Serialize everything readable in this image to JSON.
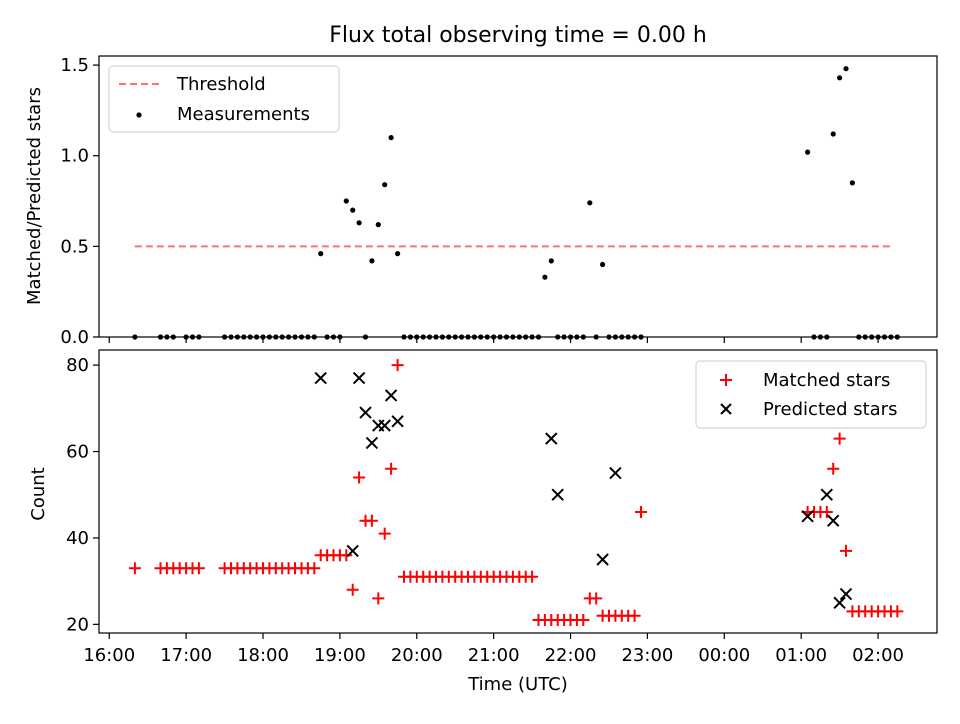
{
  "figure": {
    "title": "Flux total observing time = 0.00 h"
  },
  "chart_data": [
    {
      "type": "scatter",
      "title": "Flux total observing time = 0.00 h",
      "xlabel": "",
      "ylabel": "Matched/Predicted stars",
      "xlim": [
        "15:52",
        "02:46"
      ],
      "ylim": [
        0,
        1.55
      ],
      "yticks": [
        0.0,
        0.5,
        1.0,
        1.5
      ],
      "ytick_labels": [
        "0.0",
        "0.5",
        "1.0",
        "1.5"
      ],
      "grid": false,
      "legend": "top-left",
      "threshold": {
        "name": "Threshold",
        "value": 0.5,
        "x_start": "16:20",
        "x_end": "02:10",
        "color": "#ff7070"
      },
      "series": [
        {
          "name": "Measurements",
          "marker": "dot",
          "color": "#000000",
          "x": [
            "16:20",
            "16:40",
            "16:45",
            "16:50",
            "17:00",
            "17:05",
            "17:10",
            "17:30",
            "17:35",
            "17:40",
            "17:45",
            "17:50",
            "17:55",
            "18:00",
            "18:05",
            "18:10",
            "18:15",
            "18:20",
            "18:25",
            "18:30",
            "18:35",
            "18:40",
            "18:45",
            "18:50",
            "18:55",
            "19:00",
            "19:05",
            "19:10",
            "19:15",
            "19:20",
            "19:25",
            "19:30",
            "19:35",
            "19:40",
            "19:45",
            "19:50",
            "19:55",
            "20:00",
            "20:05",
            "20:10",
            "20:15",
            "20:20",
            "20:25",
            "20:30",
            "20:35",
            "20:40",
            "20:45",
            "20:50",
            "20:55",
            "21:00",
            "21:05",
            "21:10",
            "21:15",
            "21:20",
            "21:25",
            "21:30",
            "21:35",
            "21:40",
            "21:45",
            "21:50",
            "21:55",
            "22:00",
            "22:05",
            "22:10",
            "22:15",
            "22:20",
            "22:25",
            "22:30",
            "22:35",
            "22:40",
            "22:45",
            "22:50",
            "22:55",
            "01:05",
            "01:10",
            "01:15",
            "01:20",
            "01:25",
            "01:30",
            "01:35",
            "01:40",
            "01:45",
            "01:50",
            "01:55",
            "02:00",
            "02:05",
            "02:10",
            "02:15"
          ],
          "y": [
            0,
            0,
            0,
            0,
            0,
            0,
            0,
            0,
            0,
            0,
            0,
            0,
            0,
            0,
            0,
            0,
            0,
            0,
            0,
            0,
            0,
            0,
            0.46,
            0,
            0,
            0,
            0.75,
            0.7,
            0.63,
            0,
            0.42,
            0.62,
            0.84,
            1.1,
            0.46,
            0,
            0,
            0,
            0,
            0,
            0,
            0,
            0,
            0,
            0,
            0,
            0,
            0,
            0,
            0,
            0,
            0,
            0,
            0,
            0,
            0,
            0,
            0.33,
            0.42,
            0,
            0,
            0,
            0,
            0,
            0.74,
            0,
            0.4,
            0,
            0,
            0,
            0,
            0,
            0,
            1.02,
            0,
            0,
            0,
            1.12,
            1.43,
            1.48,
            0.85,
            0,
            0,
            0,
            0,
            0,
            0,
            0
          ]
        }
      ]
    },
    {
      "type": "scatter",
      "title": "",
      "xlabel": "Time (UTC)",
      "ylabel": "Count",
      "xlim": [
        "15:52",
        "02:46"
      ],
      "xticks": [
        "16:00",
        "17:00",
        "18:00",
        "19:00",
        "20:00",
        "21:00",
        "22:00",
        "23:00",
        "00:00",
        "01:00",
        "02:00"
      ],
      "ylim": [
        18,
        83.5
      ],
      "yticks": [
        20,
        40,
        60,
        80
      ],
      "ytick_labels": [
        "20",
        "40",
        "60",
        "80"
      ],
      "grid": false,
      "legend": "top-right",
      "series": [
        {
          "name": "Matched stars",
          "marker": "plus",
          "color": "#ff0000",
          "x": [
            "16:20",
            "16:40",
            "16:45",
            "16:50",
            "16:55",
            "17:00",
            "17:05",
            "17:10",
            "17:30",
            "17:35",
            "17:40",
            "17:45",
            "17:50",
            "17:55",
            "18:00",
            "18:05",
            "18:10",
            "18:15",
            "18:20",
            "18:25",
            "18:30",
            "18:35",
            "18:40",
            "18:45",
            "18:50",
            "18:55",
            "19:00",
            "19:05",
            "19:10",
            "19:15",
            "19:20",
            "19:25",
            "19:30",
            "19:35",
            "19:40",
            "19:45",
            "19:50",
            "19:55",
            "20:00",
            "20:05",
            "20:10",
            "20:15",
            "20:20",
            "20:25",
            "20:30",
            "20:35",
            "20:40",
            "20:45",
            "20:50",
            "20:55",
            "21:00",
            "21:05",
            "21:10",
            "21:15",
            "21:20",
            "21:25",
            "21:30",
            "21:35",
            "21:40",
            "21:45",
            "21:50",
            "21:55",
            "22:00",
            "22:05",
            "22:10",
            "22:15",
            "22:20",
            "22:25",
            "22:30",
            "22:35",
            "22:40",
            "22:45",
            "22:50",
            "22:55",
            "01:05",
            "01:10",
            "01:15",
            "01:20",
            "01:25",
            "01:30",
            "01:35",
            "01:40",
            "01:45",
            "01:50",
            "01:55",
            "02:00",
            "02:05",
            "02:10",
            "02:15"
          ],
          "y": [
            33,
            33,
            33,
            33,
            33,
            33,
            33,
            33,
            33,
            33,
            33,
            33,
            33,
            33,
            33,
            33,
            33,
            33,
            33,
            33,
            33,
            33,
            33,
            36,
            36,
            36,
            36,
            36,
            28,
            54,
            44,
            44,
            26,
            41,
            56,
            80,
            31,
            31,
            31,
            31,
            31,
            31,
            31,
            31,
            31,
            31,
            31,
            31,
            31,
            31,
            31,
            31,
            31,
            31,
            31,
            31,
            31,
            21,
            21,
            21,
            21,
            21,
            21,
            21,
            21,
            26,
            26,
            22,
            22,
            22,
            22,
            22,
            22,
            46,
            46,
            46,
            46,
            46,
            56,
            63,
            37,
            23,
            23,
            23,
            23,
            23,
            23,
            23,
            23
          ]
        },
        {
          "name": "Predicted stars",
          "marker": "x",
          "color": "#000000",
          "x": [
            "18:45",
            "19:10",
            "19:15",
            "19:20",
            "19:25",
            "19:30",
            "19:35",
            "19:40",
            "19:45",
            "21:45",
            "21:50",
            "22:25",
            "22:35",
            "01:05",
            "01:20",
            "01:25",
            "01:30",
            "01:35"
          ],
          "y": [
            77,
            37,
            77,
            69,
            62,
            66,
            66,
            73,
            67,
            63,
            50,
            35,
            55,
            45,
            50,
            44,
            25,
            27
          ]
        }
      ]
    }
  ]
}
